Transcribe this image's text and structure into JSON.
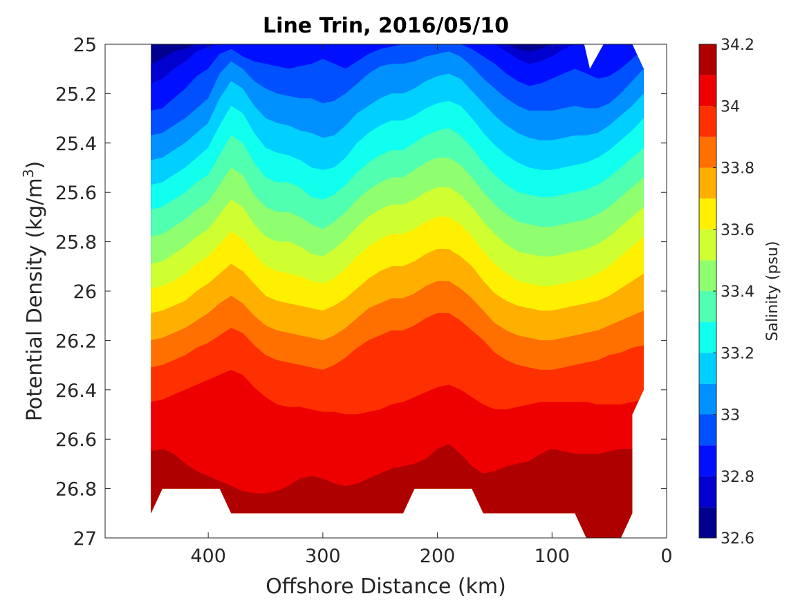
{
  "chart_data": {
    "type": "heatmap",
    "title": "Line Trin, 2016/05/10",
    "xlabel": "Offshore Distance (km)",
    "ylabel_main": "Potential Density (kg/m",
    "ylabel_sup": "3",
    "ylabel_close": ")",
    "xlim": [
      490,
      0
    ],
    "ylim": [
      25,
      27
    ],
    "x_reversed": true,
    "y_reversed": true,
    "x_ticks": [
      {
        "value": 400,
        "label": "400"
      },
      {
        "value": 300,
        "label": "300"
      },
      {
        "value": 200,
        "label": "200"
      },
      {
        "value": 100,
        "label": "100"
      },
      {
        "value": 0,
        "label": "0"
      }
    ],
    "y_ticks": [
      {
        "value": 25,
        "label": "25"
      },
      {
        "value": 25.2,
        "label": "25.2"
      },
      {
        "value": 25.4,
        "label": "25.4"
      },
      {
        "value": 25.6,
        "label": "25.6"
      },
      {
        "value": 25.8,
        "label": "25.8"
      },
      {
        "value": 26,
        "label": "26"
      },
      {
        "value": 26.2,
        "label": "26.2"
      },
      {
        "value": 26.4,
        "label": "26.4"
      },
      {
        "value": 26.6,
        "label": "26.6"
      },
      {
        "value": 26.8,
        "label": "26.8"
      },
      {
        "value": 27,
        "label": "27"
      }
    ],
    "colorbar": {
      "label": "Salinity (psu)",
      "range": [
        32.6,
        34.2
      ],
      "levels": [
        32.6,
        32.7,
        32.8,
        32.9,
        33.0,
        33.1,
        33.2,
        33.3,
        33.4,
        33.5,
        33.6,
        33.7,
        33.8,
        33.9,
        34.0,
        34.1,
        34.2
      ],
      "colors": [
        "#00008f",
        "#0000cf",
        "#0010ff",
        "#0050ff",
        "#0090ff",
        "#00cfff",
        "#10ffef",
        "#50ffaf",
        "#8fff70",
        "#cfff30",
        "#ffef00",
        "#ffaf00",
        "#ff7000",
        "#ff3000",
        "#ef0000",
        "#af0000"
      ],
      "ticks": [
        {
          "value": 32.6,
          "label": "32.6"
        },
        {
          "value": 32.8,
          "label": "32.8"
        },
        {
          "value": 33.0,
          "label": "33"
        },
        {
          "value": 33.2,
          "label": "33.2"
        },
        {
          "value": 33.4,
          "label": "33.4"
        },
        {
          "value": 33.6,
          "label": "33.6"
        },
        {
          "value": 33.8,
          "label": "33.8"
        },
        {
          "value": 34.0,
          "label": "34"
        },
        {
          "value": 34.2,
          "label": "34.2"
        }
      ]
    },
    "contour_lines": {
      "x": [
        450,
        440,
        430,
        420,
        410,
        400,
        390,
        380,
        370,
        360,
        350,
        340,
        330,
        320,
        310,
        300,
        290,
        280,
        270,
        260,
        250,
        240,
        230,
        220,
        210,
        200,
        190,
        180,
        170,
        160,
        150,
        140,
        130,
        120,
        110,
        100,
        90,
        80,
        70,
        60,
        50,
        40,
        30,
        20
      ],
      "levels": [
        {
          "value": 32.7,
          "y": [
            25.08,
            25.06,
            25.03,
            25.02,
            25.0,
            25.0,
            25.0,
            25.0,
            25.0,
            25.0,
            25.0,
            25.0,
            25.0,
            25.0,
            25.0,
            25.0,
            25.0,
            25.0,
            25.0,
            25.0,
            25.0,
            25.0,
            25.0,
            25.0,
            25.0,
            25.0,
            25.0,
            25.0,
            25.0,
            25.0,
            25.0,
            25.0,
            25.02,
            25.03,
            25.02,
            25.0,
            25.0,
            25.0,
            25.0,
            25.0,
            25.0,
            25.0,
            25.0,
            25.0
          ]
        },
        {
          "value": 32.8,
          "y": [
            25.16,
            25.14,
            25.1,
            25.07,
            25.03,
            25.01,
            25.0,
            25.0,
            25.0,
            25.0,
            25.0,
            25.0,
            25.0,
            25.0,
            25.0,
            25.0,
            25.0,
            25.0,
            25.0,
            25.0,
            25.0,
            25.0,
            25.0,
            25.0,
            25.0,
            25.0,
            25.0,
            25.0,
            25.0,
            25.0,
            25.0,
            25.03,
            25.06,
            25.08,
            25.07,
            25.05,
            25.02,
            25.0,
            25.0,
            25.0,
            25.0,
            25.0,
            25.0,
            25.0
          ]
        },
        {
          "value": 32.9,
          "y": [
            25.27,
            25.26,
            25.22,
            25.18,
            25.13,
            25.1,
            25.04,
            25.02,
            25.05,
            25.07,
            25.08,
            25.09,
            25.1,
            25.09,
            25.08,
            25.06,
            25.08,
            25.1,
            25.07,
            25.04,
            25.02,
            25.01,
            25.0,
            25.0,
            25.0,
            25.0,
            25.0,
            25.0,
            25.02,
            25.05,
            25.08,
            25.12,
            25.15,
            25.17,
            25.16,
            25.14,
            25.12,
            25.1,
            25.12,
            25.14,
            25.13,
            25.1,
            25.06,
            25.02
          ]
        },
        {
          "value": 33.0,
          "y": [
            25.37,
            25.36,
            25.33,
            25.3,
            25.26,
            25.22,
            25.12,
            25.07,
            25.1,
            25.15,
            25.18,
            25.2,
            25.21,
            25.22,
            25.22,
            25.24,
            25.23,
            25.2,
            25.16,
            25.12,
            25.09,
            25.08,
            25.08,
            25.07,
            25.05,
            25.04,
            25.03,
            25.05,
            25.09,
            25.14,
            25.18,
            25.22,
            25.25,
            25.27,
            25.27,
            25.27,
            25.26,
            25.25,
            25.26,
            25.26,
            25.24,
            25.2,
            25.15,
            25.1
          ]
        },
        {
          "value": 33.1,
          "y": [
            25.47,
            25.46,
            25.43,
            25.4,
            25.36,
            25.32,
            25.22,
            25.15,
            25.18,
            25.25,
            25.3,
            25.32,
            25.33,
            25.35,
            25.36,
            25.38,
            25.37,
            25.33,
            25.28,
            25.25,
            25.22,
            25.2,
            25.2,
            25.18,
            25.15,
            25.13,
            25.12,
            25.14,
            25.19,
            25.24,
            25.29,
            25.33,
            25.36,
            25.38,
            25.39,
            25.39,
            25.38,
            25.37,
            25.37,
            25.36,
            25.33,
            25.29,
            25.25,
            25.2
          ]
        },
        {
          "value": 33.2,
          "y": [
            25.57,
            25.56,
            25.53,
            25.5,
            25.46,
            25.42,
            25.33,
            25.25,
            25.28,
            25.36,
            25.42,
            25.44,
            25.45,
            25.47,
            25.5,
            25.51,
            25.5,
            25.46,
            25.4,
            25.36,
            25.33,
            25.31,
            25.31,
            25.29,
            25.26,
            25.24,
            25.23,
            25.25,
            25.3,
            25.36,
            25.41,
            25.45,
            25.48,
            25.5,
            25.51,
            25.51,
            25.5,
            25.49,
            25.48,
            25.46,
            25.43,
            25.39,
            25.35,
            25.3
          ]
        },
        {
          "value": 33.3,
          "y": [
            25.67,
            25.66,
            25.63,
            25.6,
            25.56,
            25.53,
            25.45,
            25.37,
            25.4,
            25.48,
            25.54,
            25.56,
            25.56,
            25.58,
            25.62,
            25.63,
            25.61,
            25.57,
            25.52,
            25.48,
            25.45,
            25.43,
            25.43,
            25.4,
            25.37,
            25.35,
            25.34,
            25.37,
            25.42,
            25.48,
            25.53,
            25.57,
            25.6,
            25.61,
            25.62,
            25.62,
            25.61,
            25.6,
            25.59,
            25.57,
            25.54,
            25.5,
            25.46,
            25.42
          ]
        },
        {
          "value": 33.4,
          "y": [
            25.78,
            25.77,
            25.74,
            25.71,
            25.67,
            25.64,
            25.57,
            25.5,
            25.53,
            25.61,
            25.66,
            25.68,
            25.68,
            25.7,
            25.73,
            25.75,
            25.72,
            25.68,
            25.63,
            25.59,
            25.56,
            25.54,
            25.54,
            25.51,
            25.48,
            25.46,
            25.46,
            25.49,
            25.54,
            25.6,
            25.65,
            25.69,
            25.72,
            25.73,
            25.74,
            25.74,
            25.73,
            25.72,
            25.71,
            25.69,
            25.66,
            25.62,
            25.58,
            25.54
          ]
        },
        {
          "value": 33.5,
          "y": [
            25.89,
            25.88,
            25.85,
            25.82,
            25.78,
            25.75,
            25.69,
            25.63,
            25.66,
            25.73,
            25.78,
            25.8,
            25.8,
            25.82,
            25.85,
            25.86,
            25.83,
            25.79,
            25.74,
            25.7,
            25.67,
            25.65,
            25.65,
            25.63,
            25.6,
            25.58,
            25.58,
            25.61,
            25.66,
            25.72,
            25.77,
            25.81,
            25.84,
            25.85,
            25.86,
            25.86,
            25.85,
            25.84,
            25.83,
            25.81,
            25.78,
            25.74,
            25.7,
            25.66
          ]
        },
        {
          "value": 33.6,
          "y": [
            25.99,
            25.98,
            25.96,
            25.93,
            25.89,
            25.86,
            25.81,
            25.76,
            25.79,
            25.85,
            25.9,
            25.92,
            25.93,
            25.94,
            25.96,
            25.97,
            25.95,
            25.91,
            25.86,
            25.82,
            25.79,
            25.77,
            25.77,
            25.75,
            25.72,
            25.7,
            25.7,
            25.73,
            25.78,
            25.84,
            25.89,
            25.93,
            25.96,
            25.97,
            25.98,
            25.98,
            25.97,
            25.96,
            25.95,
            25.93,
            25.9,
            25.86,
            25.82,
            25.78
          ]
        },
        {
          "value": 33.7,
          "y": [
            26.09,
            26.08,
            26.06,
            26.04,
            26.0,
            25.97,
            25.93,
            25.89,
            25.92,
            25.97,
            26.02,
            26.04,
            26.05,
            26.06,
            26.07,
            26.08,
            26.06,
            26.03,
            25.99,
            25.95,
            25.92,
            25.9,
            25.9,
            25.88,
            25.85,
            25.83,
            25.83,
            25.86,
            25.9,
            25.96,
            26.01,
            26.04,
            26.06,
            26.07,
            26.08,
            26.08,
            26.07,
            26.06,
            26.05,
            26.04,
            26.02,
            25.99,
            25.96,
            25.93
          ]
        },
        {
          "value": 33.8,
          "y": [
            26.2,
            26.19,
            26.17,
            26.15,
            26.12,
            26.09,
            26.05,
            26.02,
            26.05,
            26.1,
            26.14,
            26.16,
            26.17,
            26.18,
            26.19,
            26.2,
            26.18,
            26.15,
            26.11,
            26.07,
            26.05,
            26.03,
            26.03,
            26.01,
            25.98,
            25.96,
            25.96,
            25.99,
            26.03,
            26.08,
            26.13,
            26.16,
            26.18,
            26.19,
            26.2,
            26.2,
            26.19,
            26.18,
            26.17,
            26.16,
            26.14,
            26.12,
            26.1,
            26.08
          ]
        },
        {
          "value": 33.9,
          "y": [
            26.31,
            26.3,
            26.28,
            26.26,
            26.23,
            26.21,
            26.18,
            26.15,
            26.17,
            26.22,
            26.26,
            26.28,
            26.29,
            26.3,
            26.31,
            26.32,
            26.3,
            26.27,
            26.23,
            26.2,
            26.18,
            26.16,
            26.16,
            26.14,
            26.11,
            26.09,
            26.09,
            26.12,
            26.16,
            26.2,
            26.25,
            26.28,
            26.3,
            26.31,
            26.32,
            26.32,
            26.31,
            26.3,
            26.29,
            26.28,
            26.26,
            26.25,
            26.23,
            26.22
          ]
        },
        {
          "value": 34.0,
          "y": [
            26.45,
            26.44,
            26.42,
            26.4,
            26.38,
            26.36,
            26.34,
            26.32,
            26.34,
            26.39,
            26.43,
            26.46,
            26.47,
            26.47,
            26.48,
            26.49,
            26.49,
            26.5,
            26.5,
            26.49,
            26.48,
            26.46,
            26.45,
            26.43,
            26.41,
            26.39,
            26.38,
            26.4,
            26.43,
            26.46,
            26.48,
            26.48,
            26.47,
            26.46,
            26.45,
            26.45,
            26.45,
            26.45,
            26.45,
            26.46,
            26.46,
            26.46,
            26.45,
            26.44
          ]
        },
        {
          "value": 34.1,
          "y": [
            26.65,
            26.64,
            26.66,
            26.7,
            26.73,
            26.75,
            26.77,
            26.79,
            26.81,
            26.82,
            26.82,
            26.81,
            26.79,
            26.76,
            26.75,
            26.76,
            26.78,
            26.79,
            26.78,
            26.76,
            26.74,
            26.72,
            26.71,
            26.7,
            26.68,
            26.64,
            26.62,
            26.66,
            26.71,
            26.74,
            26.73,
            26.71,
            26.7,
            26.69,
            26.66,
            26.64,
            26.65,
            26.66,
            26.66,
            26.66,
            26.65,
            26.64,
            26.64,
            26.64
          ]
        }
      ],
      "bottom_level": {
        "value": 34.2,
        "x": [
          80,
          70,
          60,
          50,
          40,
          30
        ],
        "y": [
          26.92,
          26.9,
          26.88,
          26.87,
          26.88,
          26.92
        ]
      },
      "data_boundary": {
        "top": [
          {
            "x": 450,
            "y": 25.0
          },
          {
            "x": 72,
            "y": 25.0
          },
          {
            "x": 67,
            "y": 25.1
          },
          {
            "x": 55,
            "y": 25.0
          },
          {
            "x": 30,
            "y": 25.0
          },
          {
            "x": 20,
            "y": 25.1
          }
        ],
        "right": [
          {
            "x": 20,
            "y": 25.1
          },
          {
            "x": 20,
            "y": 26.4
          },
          {
            "x": 30,
            "y": 26.5
          },
          {
            "x": 30,
            "y": 26.9
          },
          {
            "x": 40,
            "y": 27.0
          }
        ],
        "bottom": [
          {
            "x": 40,
            "y": 27.0
          },
          {
            "x": 70,
            "y": 27.0
          },
          {
            "x": 80,
            "y": 26.9
          },
          {
            "x": 160,
            "y": 26.9
          },
          {
            "x": 170,
            "y": 26.8
          },
          {
            "x": 220,
            "y": 26.8
          },
          {
            "x": 230,
            "y": 26.9
          },
          {
            "x": 380,
            "y": 26.9
          },
          {
            "x": 390,
            "y": 26.8
          },
          {
            "x": 440,
            "y": 26.8
          },
          {
            "x": 450,
            "y": 26.9
          }
        ],
        "left": [
          {
            "x": 450,
            "y": 26.9
          },
          {
            "x": 450,
            "y": 25.0
          }
        ]
      }
    }
  }
}
